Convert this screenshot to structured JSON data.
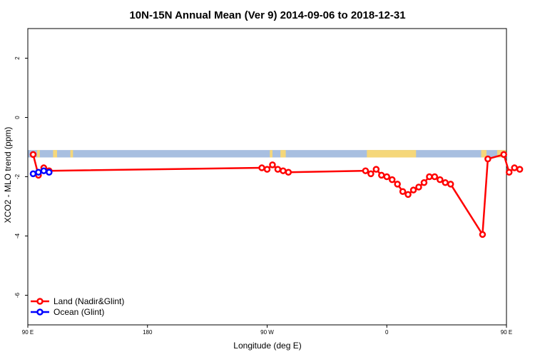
{
  "chart_data": {
    "type": "line",
    "title": "10N-15N Annual Mean (Ver 9)   2014-09-06 to 2018-12-31",
    "xlabel": "Longitude (deg E)",
    "ylabel": "XCO2 - MLO trend (ppm)",
    "xlim": [
      90,
      450
    ],
    "ylim": [
      -7.0,
      3.0
    ],
    "x_ticks": [
      {
        "value": 90,
        "label": "90 E"
      },
      {
        "value": 180,
        "label": "180"
      },
      {
        "value": 270,
        "label": "90 W"
      },
      {
        "value": 360,
        "label": "0"
      },
      {
        "value": 450,
        "label": "90 E"
      },
      {
        "value": 540,
        "label": "180"
      }
    ],
    "y_ticks": [
      {
        "value": -6,
        "label": "-6"
      },
      {
        "value": -4,
        "label": "-4"
      },
      {
        "value": -2,
        "label": "-2"
      },
      {
        "value": 0,
        "label": "0"
      },
      {
        "value": 2,
        "label": "2"
      }
    ],
    "land_band": {
      "y_top": -1.1,
      "y_bottom": -1.35,
      "ocean_color": "#a8bfe0",
      "land_color": "#f5d77a",
      "land_spans": [
        [
          97,
          99
        ],
        [
          109,
          112
        ],
        [
          122,
          124
        ],
        [
          272,
          274
        ],
        [
          280,
          284
        ],
        [
          345,
          350
        ],
        [
          346,
          382
        ],
        [
          431,
          435
        ],
        [
          443,
          451
        ],
        [
          488,
          490
        ]
      ]
    },
    "grid": false,
    "legend_position": "bottom-left",
    "series": [
      {
        "name": "Land (Nadir&Glint)",
        "color": "#ff0000",
        "x": [
          94,
          98,
          102,
          106,
          266,
          270,
          274,
          278,
          282,
          286,
          344,
          348,
          352,
          356,
          360,
          364,
          368,
          372,
          376,
          380,
          384,
          388,
          392,
          396,
          400,
          404,
          408,
          432,
          436,
          448,
          452,
          456,
          460
        ],
        "y": [
          -1.25,
          -1.95,
          -1.7,
          -1.8,
          -1.7,
          -1.75,
          -1.6,
          -1.75,
          -1.8,
          -1.85,
          -1.8,
          -1.9,
          -1.75,
          -1.95,
          -2.0,
          -2.1,
          -2.25,
          -2.5,
          -2.6,
          -2.45,
          -2.35,
          -2.2,
          -2.0,
          -2.0,
          -2.1,
          -2.2,
          -2.25,
          -3.95,
          -1.4,
          -1.25,
          -1.85,
          -1.7,
          -1.75
        ]
      },
      {
        "name": "Ocean (Glint)",
        "color": "#0000ff",
        "x": [
          94,
          98,
          102,
          106
        ],
        "y": [
          -1.9,
          -1.85,
          -1.8,
          -1.85
        ]
      }
    ]
  }
}
